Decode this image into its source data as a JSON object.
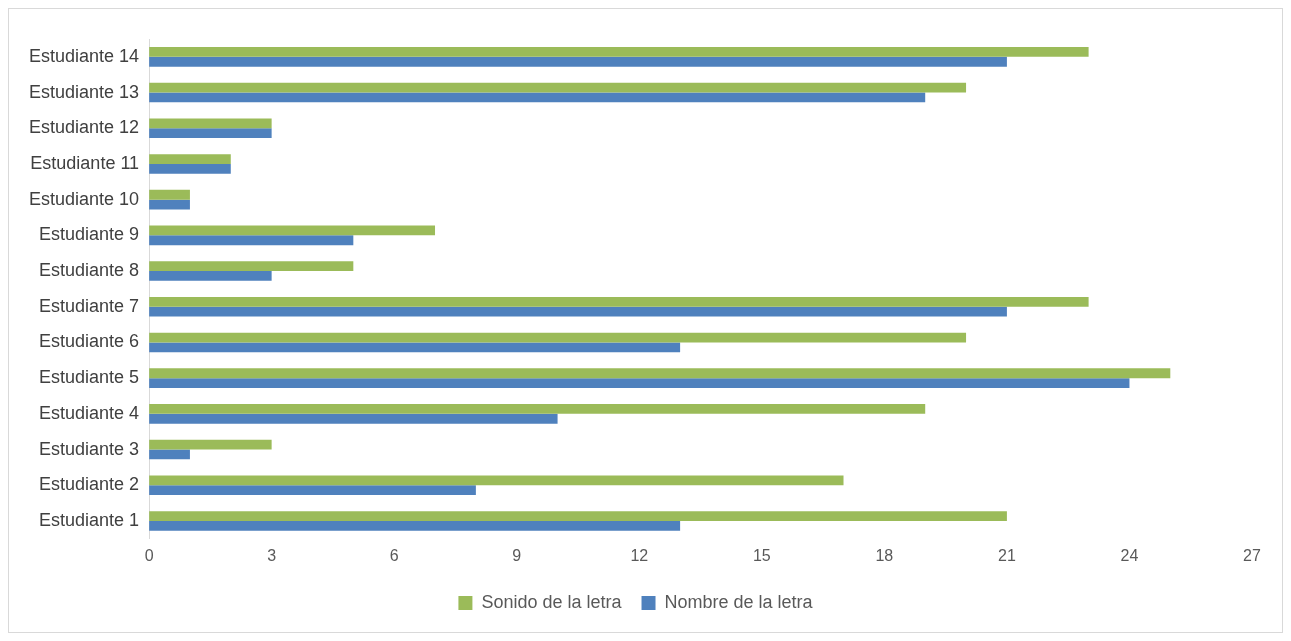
{
  "chart_data": {
    "type": "bar",
    "orientation": "horizontal",
    "categories": [
      "Estudiante 14",
      "Estudiante 13",
      "Estudiante 12",
      "Estudiante 11",
      "Estudiante 10",
      "Estudiante 9",
      "Estudiante 8",
      "Estudiante 7",
      "Estudiante 6",
      "Estudiante 5",
      "Estudiante 4",
      "Estudiante 3",
      "Estudiante 2",
      "Estudiante 1"
    ],
    "series": [
      {
        "name": "Sonido de la letra",
        "color": "#9bbb59",
        "values": [
          23,
          20,
          3,
          2,
          1,
          7,
          5,
          23,
          20,
          25,
          19,
          3,
          17,
          21
        ]
      },
      {
        "name": "Nombre de la letra",
        "color": "#4f81bd",
        "values": [
          21,
          19,
          3,
          2,
          1,
          5,
          3,
          21,
          13,
          24,
          10,
          1,
          8,
          13
        ]
      }
    ],
    "xlim": [
      0,
      27
    ],
    "xticks": [
      0,
      3,
      6,
      9,
      12,
      15,
      18,
      21,
      24,
      27
    ],
    "grid": false,
    "legend": "bottom"
  }
}
